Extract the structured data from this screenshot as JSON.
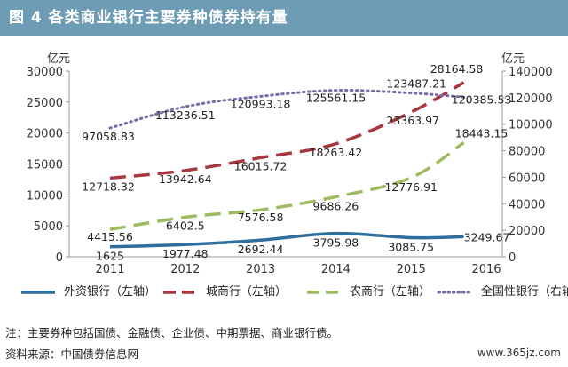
{
  "title": "图 4  各类商业银行主要券种债券持有量",
  "chart_data": {
    "type": "line",
    "categories": [
      "2011",
      "2012",
      "2013",
      "2014",
      "2015",
      "2016"
    ],
    "left_axis": {
      "unit": "亿元",
      "range": [
        0,
        30000
      ],
      "ticks": [
        "0",
        "5000",
        "10000",
        "15000",
        "20000",
        "25000",
        "30000"
      ]
    },
    "right_axis": {
      "unit": "亿元",
      "range": [
        0,
        140000
      ],
      "ticks": [
        "0",
        "20000",
        "40000",
        "60000",
        "80000",
        "100000",
        "120000",
        "140000"
      ]
    },
    "grid": false,
    "legend_position": "bottom",
    "series": [
      {
        "name": "外资银行（左轴）",
        "axis": "left",
        "color": "#2e6f9e",
        "style": "solid",
        "x": [
          2011,
          2012,
          2013,
          2014,
          2015,
          2015.7
        ],
        "values": [
          1625,
          1977.48,
          2692.44,
          3795.98,
          3085.75,
          3249.67
        ],
        "labels": [
          "1625",
          "1977.48",
          "2692.44",
          "3795.98",
          "3085.75",
          "3249.67"
        ]
      },
      {
        "name": "城商行（左轴）",
        "axis": "left",
        "color": "#a8383f",
        "style": "dash",
        "x": [
          2011,
          2012,
          2013,
          2014,
          2015,
          2015.7
        ],
        "values": [
          12718.32,
          13942.64,
          16015.72,
          18263.42,
          23363.97,
          28164.58
        ],
        "labels": [
          "12718.32",
          "13942.64",
          "16015.72",
          "18263.42",
          "23363.97",
          "28164.58"
        ]
      },
      {
        "name": "农商行（左轴）",
        "axis": "left",
        "color": "#9dbb61",
        "style": "dash",
        "x": [
          2011,
          2012,
          2013,
          2014,
          2015,
          2015.7
        ],
        "values": [
          4415.56,
          6402.5,
          7576.58,
          9686.26,
          12776.91,
          18443.15
        ],
        "labels": [
          "4415.56",
          "6402.5",
          "7576.58",
          "9686.26",
          "12776.91",
          "18443.15"
        ]
      },
      {
        "name": "全国性银行（右轴）",
        "axis": "right",
        "color": "#7b6aa6",
        "style": "dot",
        "x": [
          2011,
          2012,
          2013,
          2014,
          2015,
          2015.7
        ],
        "values": [
          97058.83,
          113236.51,
          120993.18,
          125561.15,
          123487.21,
          120385.53
        ],
        "labels": [
          "97058.83",
          "113236.51",
          "120993.18",
          "125561.15",
          "123487.21",
          "120385.53"
        ]
      }
    ]
  },
  "note": "注：主要券种包括国债、金融债、企业债、中期票据、商业银行债。",
  "source": "资料来源：中国债券信息网",
  "watermark": "www.365jz.com"
}
